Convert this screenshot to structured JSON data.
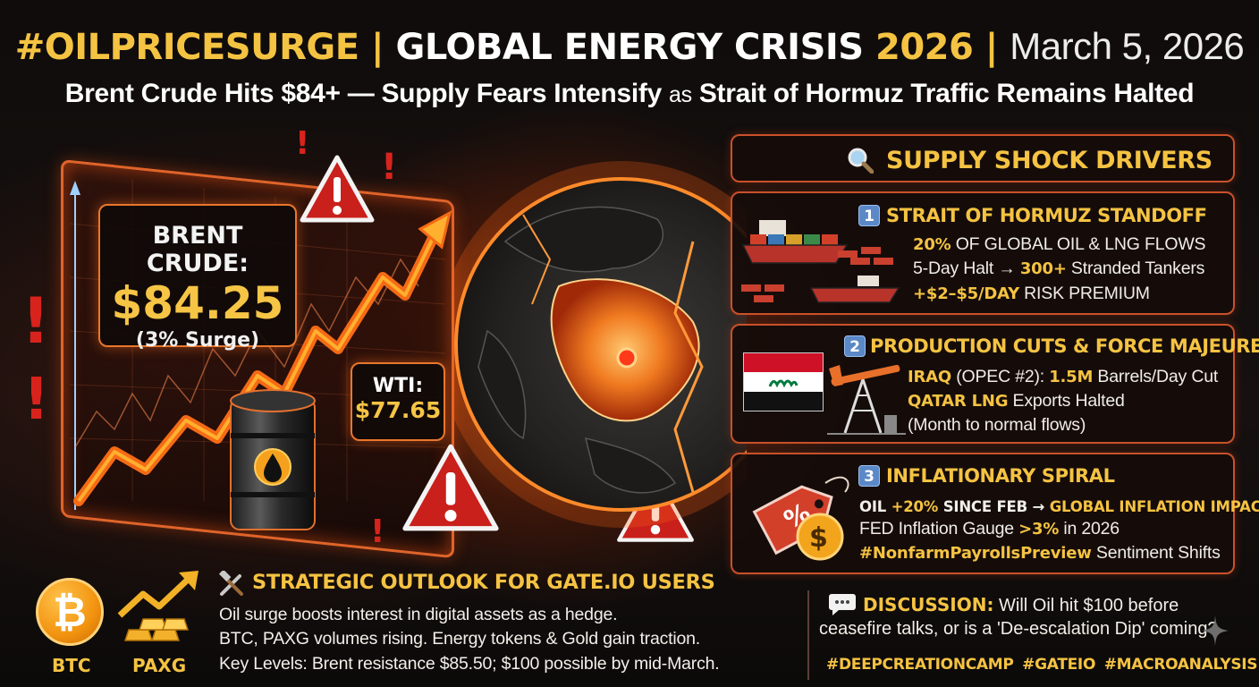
{
  "header": {
    "hashtag": "#OILPRICESURGE",
    "sep1": " | ",
    "crisis_white": "GLOBAL ENERGY CRISIS ",
    "crisis_year": "2026",
    "sep2": " | ",
    "date": "March 5, 2026",
    "subtitle_a": "Brent Crude Hits $84+ — Supply Fears Intensify ",
    "subtitle_as": "as",
    "subtitle_b": " Strait of Hormuz Traffic Remains Halted"
  },
  "brent": {
    "label": "BRENT CRUDE:",
    "price": "$84.25",
    "change": "(3% Surge)"
  },
  "wti": {
    "label": "WTI:",
    "price": "$77.65"
  },
  "drivers": {
    "title": "SUPPLY SHOCK DRIVERS"
  },
  "cards": [
    {
      "num": "1",
      "title": "STRAIT OF HORMUZ STANDOFF",
      "l1_b": "20%",
      "l1_rest": " OF GLOBAL OIL & LNG FLOWS",
      "l2_a": "5-Day Halt → ",
      "l2_b": "300+",
      "l2_c": " Stranded Tankers",
      "l3_b": "+$2–$5/DAY",
      "l3_rest": " RISK PREMIUM"
    },
    {
      "num": "2",
      "title": "PRODUCTION CUTS & FORCE MAJEURE",
      "l1_b": "IRAQ",
      "l1_a": " (OPEC #2): ",
      "l1_c": "1.5M",
      "l1_d": " Barrels/Day Cut",
      "l2_b": "QATAR LNG",
      "l2_rest": " Exports Halted",
      "l3": "(Month to normal flows)"
    },
    {
      "num": "3",
      "title": "INFLATIONARY SPIRAL",
      "l1_a": "OIL ",
      "l1_b": "+20%",
      "l1_c": " SINCE FEB → ",
      "l1_d": "GLOBAL INFLATION IMPACT",
      "l2_a": "FED Inflation Gauge ",
      "l2_b": ">3%",
      "l2_c": " in 2026",
      "l3_b": "#NonfarmPayrollsPreview",
      "l3_rest": " Sentiment Shifts"
    }
  ],
  "assets": [
    {
      "label": "BTC",
      "symbol": "₿"
    },
    {
      "label": "PAXG"
    }
  ],
  "outlook": {
    "title": "STRATEGIC OUTLOOK FOR GATE.IO USERS",
    "lines": [
      "Oil surge boosts interest in digital assets as a hedge.",
      "BTC, PAXG volumes rising. Energy tokens & Gold gain traction.",
      "Key Levels: Brent resistance $85.50; $100 possible by mid-March."
    ]
  },
  "discussion": {
    "label": "DISCUSSION:",
    "q1": " Will Oil hit $100 before",
    "q2": "ceasefire talks, or is a 'De-escalation Dip' coming?"
  },
  "hashtags": "#DEEPCREATIONCAMP #GATEIO #MACROANALYSIS",
  "colors": {
    "gold": "#f5c342",
    "accent_orange": "#e0642a",
    "alert_red": "#d8231d",
    "badge_blue": "#5b88c7"
  },
  "icons": [
    "warning-triangle-icon",
    "oil-barrel-icon",
    "globe-icon",
    "magnifier-icon",
    "tanker-icon",
    "iraq-flag-icon",
    "oil-pump-icon",
    "price-tag-icon",
    "dollar-coin-icon",
    "bitcoin-icon",
    "gold-bars-icon",
    "tools-icon",
    "speech-bubble-icon",
    "sparkle-icon"
  ]
}
